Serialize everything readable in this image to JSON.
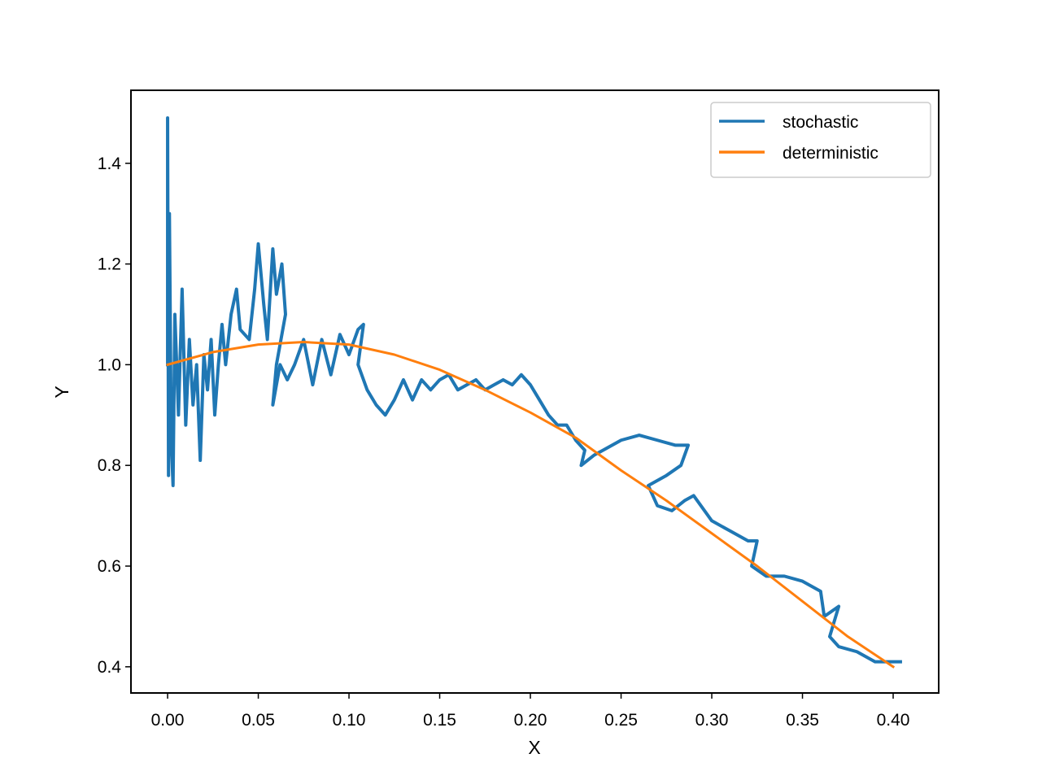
{
  "chart_data": {
    "type": "line",
    "xlabel": "X",
    "ylabel": "Y",
    "xlim": [
      -0.0202,
      0.4251
    ],
    "ylim": [
      0.348,
      1.545
    ],
    "xticks": [
      {
        "value": 0,
        "label": "0.00"
      },
      0.05,
      {
        "value": 0.1,
        "label": "0.10"
      },
      0.15,
      {
        "value": 0.2,
        "label": "0.20"
      },
      0.25,
      {
        "value": 0.3,
        "label": "0.30"
      },
      0.35,
      {
        "value": 0.4,
        "label": "0.40"
      }
    ],
    "yticks": [
      0.4,
      0.6,
      0.8,
      {
        "value": 1,
        "label": "1.0"
      },
      1.2,
      1.4
    ],
    "legend": "upper right",
    "grid": false,
    "series": [
      {
        "name": "stochastic",
        "color": "#1f77b4",
        "linewidth": 4,
        "x": [
          0,
          0,
          0.0005,
          0.001,
          0.002,
          0.003,
          0.004,
          0.006,
          0.008,
          0.01,
          0.012,
          0.014,
          0.016,
          0.018,
          0.02,
          0.022,
          0.024,
          0.026,
          0.028,
          0.03,
          0.032,
          0.035,
          0.038,
          0.04,
          0.045,
          0.048,
          0.05,
          0.053,
          0.055,
          0.058,
          0.06,
          0.063,
          0.065,
          0.06,
          0.058,
          0.062,
          0.066,
          0.07,
          0.075,
          0.08,
          0.085,
          0.09,
          0.095,
          0.1,
          0.105,
          0.108,
          0.105,
          0.11,
          0.115,
          0.12,
          0.125,
          0.13,
          0.135,
          0.14,
          0.145,
          0.15,
          0.155,
          0.16,
          0.165,
          0.17,
          0.175,
          0.18,
          0.185,
          0.19,
          0.195,
          0.2,
          0.205,
          0.21,
          0.215,
          0.22,
          0.225,
          0.23,
          0.228,
          0.235,
          0.24,
          0.25,
          0.26,
          0.27,
          0.28,
          0.287,
          0.283,
          0.275,
          0.265,
          0.27,
          0.278,
          0.285,
          0.29,
          0.3,
          0.31,
          0.32,
          0.325,
          0.322,
          0.33,
          0.34,
          0.35,
          0.36,
          0.362,
          0.37,
          0.365,
          0.37,
          0.38,
          0.39,
          0.4,
          0.404
        ],
        "values": [
          1.0,
          1.49,
          0.78,
          1.3,
          0.85,
          0.76,
          1.1,
          0.9,
          1.15,
          0.88,
          1.05,
          0.92,
          1.0,
          0.81,
          1.02,
          0.95,
          1.05,
          0.9,
          1.0,
          1.08,
          1.0,
          1.1,
          1.15,
          1.07,
          1.05,
          1.15,
          1.24,
          1.12,
          1.05,
          1.23,
          1.14,
          1.2,
          1.1,
          1.0,
          0.92,
          1.0,
          0.97,
          1.0,
          1.05,
          0.96,
          1.05,
          0.98,
          1.06,
          1.02,
          1.07,
          1.08,
          1.0,
          0.95,
          0.92,
          0.9,
          0.93,
          0.97,
          0.93,
          0.97,
          0.95,
          0.97,
          0.98,
          0.95,
          0.96,
          0.97,
          0.95,
          0.96,
          0.97,
          0.96,
          0.98,
          0.96,
          0.93,
          0.9,
          0.88,
          0.88,
          0.85,
          0.83,
          0.8,
          0.82,
          0.83,
          0.85,
          0.86,
          0.85,
          0.84,
          0.84,
          0.8,
          0.78,
          0.76,
          0.72,
          0.71,
          0.73,
          0.74,
          0.69,
          0.67,
          0.65,
          0.65,
          0.6,
          0.58,
          0.58,
          0.57,
          0.55,
          0.5,
          0.52,
          0.46,
          0.44,
          0.43,
          0.41,
          0.41,
          0.41
        ]
      },
      {
        "name": "deterministic",
        "color": "#ff7f0e",
        "linewidth": 3,
        "x": [
          0,
          0.025,
          0.05,
          0.075,
          0.1,
          0.125,
          0.15,
          0.175,
          0.2,
          0.225,
          0.25,
          0.275,
          0.3,
          0.325,
          0.35,
          0.375,
          0.4
        ],
        "values": [
          1.0,
          1.025,
          1.04,
          1.045,
          1.04,
          1.02,
          0.99,
          0.95,
          0.905,
          0.855,
          0.79,
          0.73,
          0.665,
          0.6,
          0.53,
          0.46,
          0.4
        ]
      }
    ]
  }
}
